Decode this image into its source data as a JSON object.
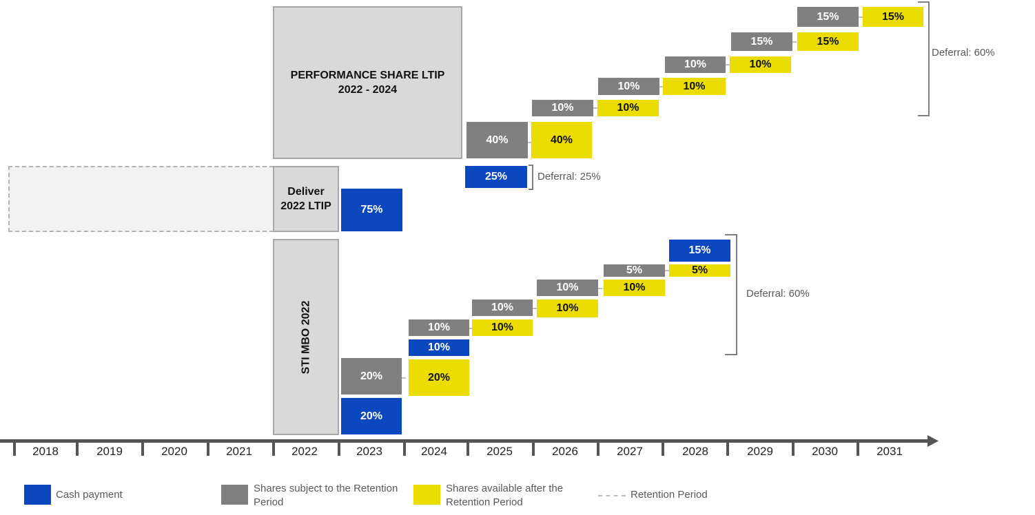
{
  "colors": {
    "cash": "#0b47bf",
    "retention_shares": "#808080",
    "available_shares": "#ecdd00",
    "plan_box": "#d9d9d9",
    "axis": "#555555"
  },
  "timeline": {
    "years": [
      "2018",
      "2019",
      "2020",
      "2021",
      "2022",
      "2023",
      "2024",
      "2025",
      "2026",
      "2027",
      "2028",
      "2029",
      "2030",
      "2031"
    ]
  },
  "plans": {
    "ltip_performance": {
      "line1": "PERFORMANCE SHARE LTIP",
      "line2": "2022 - 2024"
    },
    "deliver_ltip": {
      "line1": "Deliver",
      "line2": "2022 LTIP"
    },
    "sti": {
      "label": "STI MBO 2022"
    }
  },
  "ltip_blocks": {
    "cash_2023": "75%",
    "cash_2025": "25%",
    "ret_2025": "40%",
    "avail_2025": "40%",
    "ret_2026": "10%",
    "avail_2026": "10%",
    "ret_2027": "10%",
    "avail_2027": "10%",
    "ret_2028": "10%",
    "avail_2028": "10%",
    "ret_2029": "15%",
    "avail_2029": "15%",
    "ret_2030": "15%",
    "avail_2030": "15%"
  },
  "sti_blocks": {
    "cash_2023": "20%",
    "ret_2023": "20%",
    "avail_2024": "20%",
    "cash_2024": "10%",
    "ret_2024": "10%",
    "avail_2025": "10%",
    "ret_2025": "10%",
    "avail_2026": "10%",
    "ret_2026": "10%",
    "avail_2027": "10%",
    "ret_2027": "5%",
    "avail_2028": "5%",
    "cash_2028": "15%"
  },
  "deferrals": {
    "ltip_cash": "Deferral: 25%",
    "ltip_shares": "Deferral: 60%",
    "sti": "Deferral: 60%"
  },
  "legend": {
    "cash": "Cash payment",
    "retention_line1": "Shares subject to the Retention",
    "retention_line2": "Period",
    "available_line1": "Shares available after the",
    "available_line2": "Retention Period",
    "period": "Retention Period"
  }
}
